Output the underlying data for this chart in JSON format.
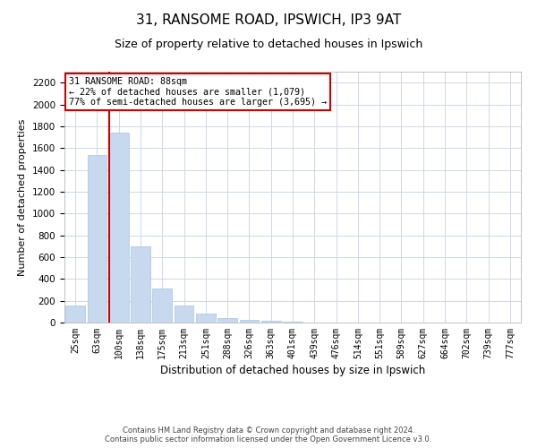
{
  "title": "31, RANSOME ROAD, IPSWICH, IP3 9AT",
  "subtitle": "Size of property relative to detached houses in Ipswich",
  "xlabel": "Distribution of detached houses by size in Ipswich",
  "ylabel": "Number of detached properties",
  "categories": [
    "25sqm",
    "63sqm",
    "100sqm",
    "138sqm",
    "175sqm",
    "213sqm",
    "251sqm",
    "288sqm",
    "326sqm",
    "363sqm",
    "401sqm",
    "439sqm",
    "476sqm",
    "514sqm",
    "551sqm",
    "589sqm",
    "627sqm",
    "664sqm",
    "702sqm",
    "739sqm",
    "777sqm"
  ],
  "values": [
    155,
    1535,
    1745,
    700,
    315,
    160,
    80,
    45,
    25,
    20,
    10,
    0,
    0,
    0,
    0,
    0,
    0,
    0,
    0,
    0,
    0
  ],
  "bar_color": "#c6d9ee",
  "bar_edge_color": "#a8c4de",
  "vline_color": "#cc0000",
  "annotation_line1": "31 RANSOME ROAD: 88sqm",
  "annotation_line2": "← 22% of detached houses are smaller (1,079)",
  "annotation_line3": "77% of semi-detached houses are larger (3,695) →",
  "annotation_box_color": "#ffffff",
  "annotation_box_edge_color": "#cc0000",
  "ylim": [
    0,
    2300
  ],
  "yticks": [
    0,
    200,
    400,
    600,
    800,
    1000,
    1200,
    1400,
    1600,
    1800,
    2000,
    2200
  ],
  "footer_line1": "Contains HM Land Registry data © Crown copyright and database right 2024.",
  "footer_line2": "Contains public sector information licensed under the Open Government Licence v3.0.",
  "bg_color": "#ffffff",
  "grid_color": "#cdd8e8"
}
